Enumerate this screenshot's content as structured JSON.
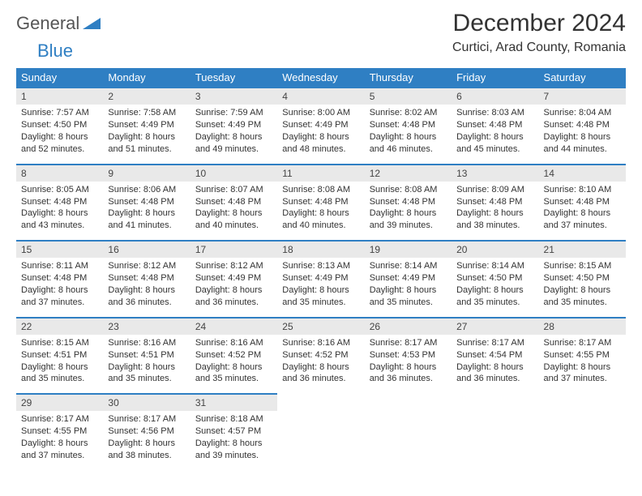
{
  "logo": {
    "part1": "General",
    "part2": "Blue"
  },
  "title": "December 2024",
  "location": "Curtici, Arad County, Romania",
  "colors": {
    "accent": "#2f7fc3",
    "header_bg": "#2f7fc3",
    "header_fg": "#ffffff",
    "daynum_bg": "#e9e9e9",
    "text": "#333333"
  },
  "day_headers": [
    "Sunday",
    "Monday",
    "Tuesday",
    "Wednesday",
    "Thursday",
    "Friday",
    "Saturday"
  ],
  "weeks": [
    [
      {
        "n": "1",
        "sr": "Sunrise: 7:57 AM",
        "ss": "Sunset: 4:50 PM",
        "d1": "Daylight: 8 hours",
        "d2": "and 52 minutes."
      },
      {
        "n": "2",
        "sr": "Sunrise: 7:58 AM",
        "ss": "Sunset: 4:49 PM",
        "d1": "Daylight: 8 hours",
        "d2": "and 51 minutes."
      },
      {
        "n": "3",
        "sr": "Sunrise: 7:59 AM",
        "ss": "Sunset: 4:49 PM",
        "d1": "Daylight: 8 hours",
        "d2": "and 49 minutes."
      },
      {
        "n": "4",
        "sr": "Sunrise: 8:00 AM",
        "ss": "Sunset: 4:49 PM",
        "d1": "Daylight: 8 hours",
        "d2": "and 48 minutes."
      },
      {
        "n": "5",
        "sr": "Sunrise: 8:02 AM",
        "ss": "Sunset: 4:48 PM",
        "d1": "Daylight: 8 hours",
        "d2": "and 46 minutes."
      },
      {
        "n": "6",
        "sr": "Sunrise: 8:03 AM",
        "ss": "Sunset: 4:48 PM",
        "d1": "Daylight: 8 hours",
        "d2": "and 45 minutes."
      },
      {
        "n": "7",
        "sr": "Sunrise: 8:04 AM",
        "ss": "Sunset: 4:48 PM",
        "d1": "Daylight: 8 hours",
        "d2": "and 44 minutes."
      }
    ],
    [
      {
        "n": "8",
        "sr": "Sunrise: 8:05 AM",
        "ss": "Sunset: 4:48 PM",
        "d1": "Daylight: 8 hours",
        "d2": "and 43 minutes."
      },
      {
        "n": "9",
        "sr": "Sunrise: 8:06 AM",
        "ss": "Sunset: 4:48 PM",
        "d1": "Daylight: 8 hours",
        "d2": "and 41 minutes."
      },
      {
        "n": "10",
        "sr": "Sunrise: 8:07 AM",
        "ss": "Sunset: 4:48 PM",
        "d1": "Daylight: 8 hours",
        "d2": "and 40 minutes."
      },
      {
        "n": "11",
        "sr": "Sunrise: 8:08 AM",
        "ss": "Sunset: 4:48 PM",
        "d1": "Daylight: 8 hours",
        "d2": "and 40 minutes."
      },
      {
        "n": "12",
        "sr": "Sunrise: 8:08 AM",
        "ss": "Sunset: 4:48 PM",
        "d1": "Daylight: 8 hours",
        "d2": "and 39 minutes."
      },
      {
        "n": "13",
        "sr": "Sunrise: 8:09 AM",
        "ss": "Sunset: 4:48 PM",
        "d1": "Daylight: 8 hours",
        "d2": "and 38 minutes."
      },
      {
        "n": "14",
        "sr": "Sunrise: 8:10 AM",
        "ss": "Sunset: 4:48 PM",
        "d1": "Daylight: 8 hours",
        "d2": "and 37 minutes."
      }
    ],
    [
      {
        "n": "15",
        "sr": "Sunrise: 8:11 AM",
        "ss": "Sunset: 4:48 PM",
        "d1": "Daylight: 8 hours",
        "d2": "and 37 minutes."
      },
      {
        "n": "16",
        "sr": "Sunrise: 8:12 AM",
        "ss": "Sunset: 4:48 PM",
        "d1": "Daylight: 8 hours",
        "d2": "and 36 minutes."
      },
      {
        "n": "17",
        "sr": "Sunrise: 8:12 AM",
        "ss": "Sunset: 4:49 PM",
        "d1": "Daylight: 8 hours",
        "d2": "and 36 minutes."
      },
      {
        "n": "18",
        "sr": "Sunrise: 8:13 AM",
        "ss": "Sunset: 4:49 PM",
        "d1": "Daylight: 8 hours",
        "d2": "and 35 minutes."
      },
      {
        "n": "19",
        "sr": "Sunrise: 8:14 AM",
        "ss": "Sunset: 4:49 PM",
        "d1": "Daylight: 8 hours",
        "d2": "and 35 minutes."
      },
      {
        "n": "20",
        "sr": "Sunrise: 8:14 AM",
        "ss": "Sunset: 4:50 PM",
        "d1": "Daylight: 8 hours",
        "d2": "and 35 minutes."
      },
      {
        "n": "21",
        "sr": "Sunrise: 8:15 AM",
        "ss": "Sunset: 4:50 PM",
        "d1": "Daylight: 8 hours",
        "d2": "and 35 minutes."
      }
    ],
    [
      {
        "n": "22",
        "sr": "Sunrise: 8:15 AM",
        "ss": "Sunset: 4:51 PM",
        "d1": "Daylight: 8 hours",
        "d2": "and 35 minutes."
      },
      {
        "n": "23",
        "sr": "Sunrise: 8:16 AM",
        "ss": "Sunset: 4:51 PM",
        "d1": "Daylight: 8 hours",
        "d2": "and 35 minutes."
      },
      {
        "n": "24",
        "sr": "Sunrise: 8:16 AM",
        "ss": "Sunset: 4:52 PM",
        "d1": "Daylight: 8 hours",
        "d2": "and 35 minutes."
      },
      {
        "n": "25",
        "sr": "Sunrise: 8:16 AM",
        "ss": "Sunset: 4:52 PM",
        "d1": "Daylight: 8 hours",
        "d2": "and 36 minutes."
      },
      {
        "n": "26",
        "sr": "Sunrise: 8:17 AM",
        "ss": "Sunset: 4:53 PM",
        "d1": "Daylight: 8 hours",
        "d2": "and 36 minutes."
      },
      {
        "n": "27",
        "sr": "Sunrise: 8:17 AM",
        "ss": "Sunset: 4:54 PM",
        "d1": "Daylight: 8 hours",
        "d2": "and 36 minutes."
      },
      {
        "n": "28",
        "sr": "Sunrise: 8:17 AM",
        "ss": "Sunset: 4:55 PM",
        "d1": "Daylight: 8 hours",
        "d2": "and 37 minutes."
      }
    ],
    [
      {
        "n": "29",
        "sr": "Sunrise: 8:17 AM",
        "ss": "Sunset: 4:55 PM",
        "d1": "Daylight: 8 hours",
        "d2": "and 37 minutes."
      },
      {
        "n": "30",
        "sr": "Sunrise: 8:17 AM",
        "ss": "Sunset: 4:56 PM",
        "d1": "Daylight: 8 hours",
        "d2": "and 38 minutes."
      },
      {
        "n": "31",
        "sr": "Sunrise: 8:18 AM",
        "ss": "Sunset: 4:57 PM",
        "d1": "Daylight: 8 hours",
        "d2": "and 39 minutes."
      },
      null,
      null,
      null,
      null
    ]
  ]
}
